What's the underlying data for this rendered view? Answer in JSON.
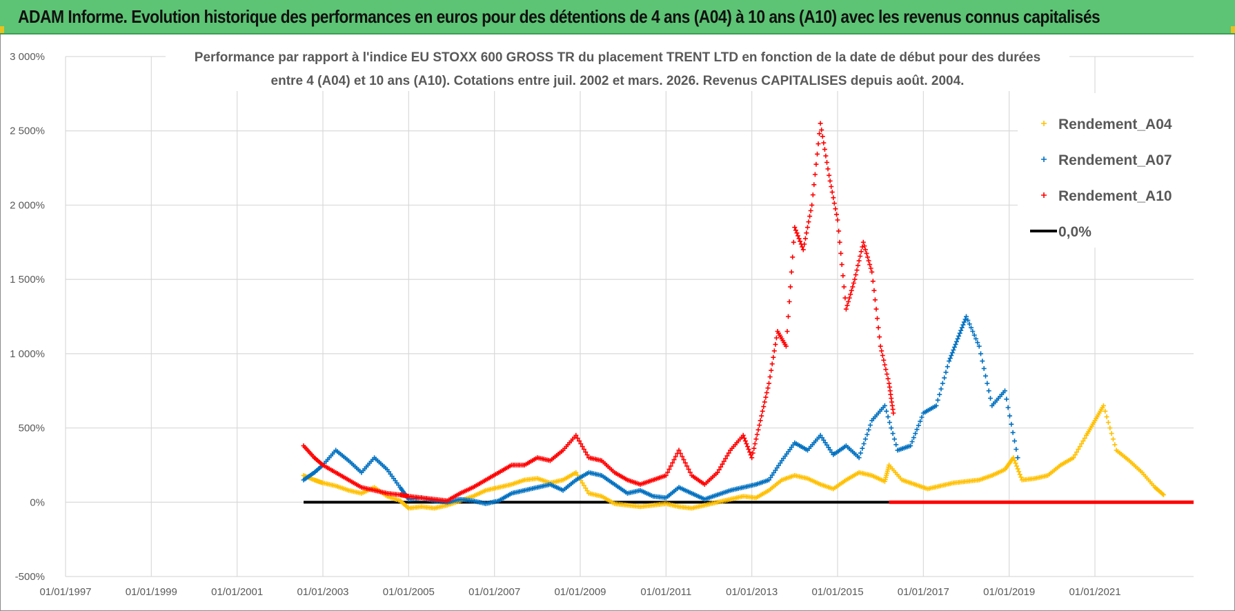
{
  "header": {
    "title": "ADAM Informe. Evolution historique des performances en euros pour des détentions de 4 ans (A04) à 10 ans (A10) avec les revenus connus capitalisés"
  },
  "chart_data": {
    "type": "scatter",
    "title_lines": [
      "Performance par rapport à l'indice EU STOXX 600 GROSS TR  du placement TRENT LTD en fonction de la date de début pour des durées",
      "entre 4 (A04) et 10 ans (A10). Cotations entre juil. 2002 et mars. 2026. Revenus CAPITALISES depuis août. 2004."
    ],
    "xlabel": "",
    "ylabel": "",
    "x_ticks": [
      "01/01/1997",
      "01/01/1999",
      "01/01/2001",
      "01/01/2003",
      "01/01/2005",
      "01/01/2007",
      "01/01/2009",
      "01/01/2011",
      "01/01/2013",
      "01/01/2015",
      "01/01/2017",
      "01/01/2019",
      "01/01/2021"
    ],
    "xlim": [
      1997.0,
      2023.3
    ],
    "ylim": [
      -500,
      3000
    ],
    "y_ticks": [
      -500,
      0,
      500,
      1000,
      1500,
      2000,
      2500,
      3000
    ],
    "y_tick_labels": [
      "-500%",
      "0%",
      "500%",
      "1 000%",
      "1 500%",
      "2 000%",
      "2 500%",
      "3 000%"
    ],
    "grid": true,
    "legend_position": "top-right",
    "series": [
      {
        "name": "Rendement_A04",
        "color": "#ffc000",
        "marker": "plus",
        "x": [
          2002.55,
          2002.8,
          2003.0,
          2003.3,
          2003.6,
          2003.9,
          2004.2,
          2004.5,
          2004.8,
          2005.0,
          2005.3,
          2005.6,
          2005.9,
          2006.2,
          2006.5,
          2006.8,
          2007.1,
          2007.4,
          2007.7,
          2008.0,
          2008.3,
          2008.6,
          2008.9,
          2009.2,
          2009.5,
          2009.8,
          2010.1,
          2010.4,
          2010.7,
          2011.0,
          2011.3,
          2011.6,
          2011.9,
          2012.2,
          2012.5,
          2012.8,
          2013.1,
          2013.4,
          2013.7,
          2014.0,
          2014.3,
          2014.6,
          2014.9,
          2015.2,
          2015.5,
          2015.8,
          2016.1,
          2016.2,
          2016.5,
          2016.8,
          2017.1,
          2017.4,
          2017.7,
          2018.0,
          2018.3,
          2018.6,
          2018.9,
          2019.1,
          2019.3,
          2019.6,
          2019.9,
          2020.2,
          2020.5,
          2020.8,
          2021.0,
          2021.2,
          2021.5,
          2021.8,
          2022.1,
          2022.4,
          2022.6
        ],
        "y": [
          180,
          150,
          130,
          110,
          80,
          60,
          100,
          40,
          10,
          -40,
          -30,
          -40,
          -20,
          10,
          40,
          80,
          100,
          120,
          150,
          160,
          130,
          150,
          200,
          60,
          40,
          -10,
          -20,
          -30,
          -20,
          -10,
          -30,
          -40,
          -20,
          0,
          20,
          40,
          30,
          80,
          150,
          180,
          160,
          120,
          90,
          150,
          200,
          180,
          140,
          250,
          150,
          120,
          90,
          110,
          130,
          140,
          150,
          180,
          220,
          300,
          150,
          160,
          180,
          250,
          300,
          450,
          550,
          650,
          350,
          280,
          200,
          100,
          50
        ]
      },
      {
        "name": "Rendement_A07",
        "color": "#0070c0",
        "marker": "plus",
        "x": [
          2002.55,
          2002.8,
          2003.0,
          2003.3,
          2003.6,
          2003.9,
          2004.2,
          2004.5,
          2004.8,
          2005.0,
          2005.3,
          2005.6,
          2005.9,
          2006.2,
          2006.5,
          2006.8,
          2007.1,
          2007.4,
          2007.7,
          2008.0,
          2008.3,
          2008.6,
          2008.9,
          2009.2,
          2009.5,
          2009.8,
          2010.1,
          2010.4,
          2010.7,
          2011.0,
          2011.3,
          2011.6,
          2011.9,
          2012.2,
          2012.5,
          2012.8,
          2013.1,
          2013.4,
          2013.7,
          2014.0,
          2014.3,
          2014.6,
          2014.9,
          2015.2,
          2015.5,
          2015.8,
          2016.1,
          2016.4,
          2016.7,
          2017.0,
          2017.3,
          2017.6,
          2017.8,
          2018.0,
          2018.3,
          2018.6,
          2018.9,
          2019.2
        ],
        "y": [
          150,
          200,
          250,
          350,
          280,
          200,
          300,
          220,
          100,
          20,
          30,
          10,
          0,
          20,
          10,
          -10,
          10,
          60,
          80,
          100,
          120,
          80,
          150,
          200,
          180,
          120,
          60,
          80,
          40,
          30,
          100,
          60,
          20,
          50,
          80,
          100,
          120,
          150,
          280,
          400,
          350,
          450,
          320,
          380,
          300,
          550,
          650,
          350,
          380,
          600,
          650,
          950,
          1100,
          1250,
          1050,
          650,
          750,
          300
        ]
      },
      {
        "name": "Rendement_A10",
        "color": "#ff0000",
        "marker": "plus",
        "x": [
          2002.55,
          2002.8,
          2003.0,
          2003.3,
          2003.6,
          2003.9,
          2004.2,
          2004.5,
          2004.8,
          2005.0,
          2005.3,
          2005.6,
          2005.9,
          2006.2,
          2006.5,
          2006.8,
          2007.1,
          2007.4,
          2007.7,
          2008.0,
          2008.3,
          2008.6,
          2008.9,
          2009.2,
          2009.5,
          2009.8,
          2010.1,
          2010.4,
          2010.7,
          2011.0,
          2011.3,
          2011.6,
          2011.9,
          2012.2,
          2012.5,
          2012.8,
          2013.0,
          2013.2,
          2013.4,
          2013.6,
          2013.8,
          2014.0,
          2014.2,
          2014.4,
          2014.6,
          2014.8,
          2015.0,
          2015.2,
          2015.4,
          2015.6,
          2015.8,
          2016.0,
          2016.2,
          2016.3
        ],
        "y": [
          380,
          300,
          250,
          200,
          150,
          100,
          80,
          60,
          50,
          40,
          30,
          20,
          10,
          60,
          100,
          150,
          200,
          250,
          250,
          300,
          280,
          350,
          450,
          300,
          280,
          200,
          150,
          120,
          150,
          180,
          350,
          180,
          120,
          200,
          350,
          450,
          300,
          550,
          800,
          1150,
          1050,
          1850,
          1700,
          2000,
          2550,
          2200,
          1900,
          1300,
          1500,
          1750,
          1550,
          1050,
          800,
          600
        ]
      },
      {
        "name": "0,0%",
        "color": "#000000",
        "marker": "line",
        "x": [
          2002.55,
          2016.2
        ],
        "y": [
          0,
          0
        ]
      }
    ],
    "zero_red_segment": {
      "color": "#ff0000",
      "x": [
        2016.2,
        2023.3
      ],
      "y": [
        0,
        0
      ]
    }
  }
}
